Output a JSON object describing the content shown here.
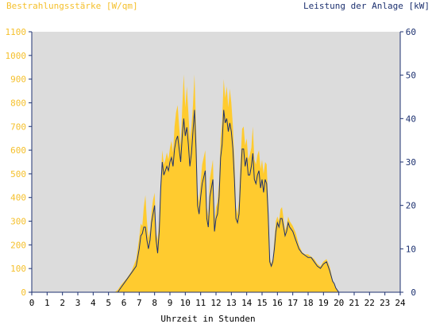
{
  "chart_data": {
    "type": "area",
    "title_left": "Bestrahlungsstärke [W/qm]",
    "title_right": "Leistung der Anlage [kW]",
    "xlabel": "Uhrzeit in Stunden",
    "x_ticks": [
      "0",
      "1",
      "2",
      "3",
      "4",
      "5",
      "6",
      "7",
      "8",
      "9",
      "10",
      "11",
      "12",
      "13",
      "14",
      "15",
      "16",
      "17",
      "18",
      "19",
      "20",
      "21",
      "22",
      "23",
      "24"
    ],
    "y_left_ticks": [
      "0",
      "100",
      "200",
      "300",
      "400",
      "500",
      "600",
      "700",
      "800",
      "900",
      "1000",
      "1100"
    ],
    "y_right_ticks": [
      "0",
      "10",
      "20",
      "30",
      "40",
      "50",
      "60"
    ],
    "xlim": [
      0,
      24
    ],
    "ylim_left": [
      0,
      1100
    ],
    "ylim_right": [
      0,
      60
    ],
    "grid": false,
    "colors": {
      "plot_bg": "#dcdcdc",
      "irradiance_fill": "#ffcb2f",
      "power_line": "#1d3170",
      "left_axis_text": "#f5c02c",
      "right_axis_text": "#1d3170"
    },
    "series": [
      {
        "axis": "left",
        "style": "filled-area",
        "points": [
          [
            0,
            0
          ],
          [
            5.4,
            0
          ],
          [
            5.6,
            10
          ],
          [
            5.8,
            30
          ],
          [
            6.0,
            45
          ],
          [
            6.2,
            60
          ],
          [
            6.5,
            90
          ],
          [
            6.8,
            140
          ],
          [
            7.0,
            230
          ],
          [
            7.1,
            290
          ],
          [
            7.2,
            280
          ],
          [
            7.3,
            360
          ],
          [
            7.4,
            410
          ],
          [
            7.5,
            300
          ],
          [
            7.6,
            230
          ],
          [
            7.7,
            260
          ],
          [
            7.8,
            340
          ],
          [
            7.9,
            390
          ],
          [
            8.0,
            420
          ],
          [
            8.1,
            250
          ],
          [
            8.2,
            220
          ],
          [
            8.3,
            300
          ],
          [
            8.4,
            470
          ],
          [
            8.5,
            600
          ],
          [
            8.6,
            540
          ],
          [
            8.7,
            560
          ],
          [
            8.8,
            590
          ],
          [
            8.9,
            560
          ],
          [
            9.0,
            610
          ],
          [
            9.1,
            640
          ],
          [
            9.2,
            590
          ],
          [
            9.3,
            700
          ],
          [
            9.4,
            760
          ],
          [
            9.5,
            790
          ],
          [
            9.6,
            700
          ],
          [
            9.7,
            620
          ],
          [
            9.8,
            780
          ],
          [
            9.9,
            920
          ],
          [
            10.0,
            780
          ],
          [
            10.1,
            870
          ],
          [
            10.2,
            760
          ],
          [
            10.3,
            640
          ],
          [
            10.4,
            700
          ],
          [
            10.5,
            790
          ],
          [
            10.6,
            920
          ],
          [
            10.7,
            700
          ],
          [
            10.8,
            420
          ],
          [
            10.9,
            380
          ],
          [
            11.0,
            470
          ],
          [
            11.1,
            540
          ],
          [
            11.3,
            600
          ],
          [
            11.4,
            360
          ],
          [
            11.5,
            320
          ],
          [
            11.6,
            480
          ],
          [
            11.8,
            560
          ],
          [
            11.9,
            300
          ],
          [
            12.0,
            360
          ],
          [
            12.1,
            380
          ],
          [
            12.2,
            470
          ],
          [
            12.3,
            650
          ],
          [
            12.4,
            720
          ],
          [
            12.5,
            900
          ],
          [
            12.6,
            820
          ],
          [
            12.7,
            870
          ],
          [
            12.8,
            780
          ],
          [
            12.9,
            860
          ],
          [
            13.0,
            800
          ],
          [
            13.1,
            700
          ],
          [
            13.2,
            560
          ],
          [
            13.3,
            360
          ],
          [
            13.4,
            330
          ],
          [
            13.5,
            390
          ],
          [
            13.6,
            560
          ],
          [
            13.7,
            690
          ],
          [
            13.8,
            700
          ],
          [
            13.9,
            620
          ],
          [
            14.0,
            650
          ],
          [
            14.1,
            560
          ],
          [
            14.2,
            580
          ],
          [
            14.3,
            610
          ],
          [
            14.4,
            700
          ],
          [
            14.5,
            560
          ],
          [
            14.6,
            540
          ],
          [
            14.7,
            580
          ],
          [
            14.8,
            600
          ],
          [
            14.9,
            520
          ],
          [
            15.0,
            560
          ],
          [
            15.1,
            500
          ],
          [
            15.2,
            550
          ],
          [
            15.3,
            540
          ],
          [
            15.4,
            380
          ],
          [
            15.5,
            150
          ],
          [
            15.6,
            120
          ],
          [
            15.7,
            140
          ],
          [
            15.8,
            220
          ],
          [
            15.9,
            300
          ],
          [
            16.0,
            320
          ],
          [
            16.1,
            300
          ],
          [
            16.2,
            350
          ],
          [
            16.3,
            360
          ],
          [
            16.4,
            310
          ],
          [
            16.5,
            260
          ],
          [
            16.6,
            280
          ],
          [
            16.7,
            320
          ],
          [
            16.8,
            300
          ],
          [
            17.0,
            280
          ],
          [
            17.2,
            250
          ],
          [
            17.4,
            200
          ],
          [
            17.6,
            170
          ],
          [
            17.8,
            160
          ],
          [
            18.0,
            160
          ],
          [
            18.2,
            150
          ],
          [
            18.4,
            140
          ],
          [
            18.6,
            120
          ],
          [
            18.8,
            110
          ],
          [
            19.0,
            130
          ],
          [
            19.2,
            140
          ],
          [
            19.4,
            110
          ],
          [
            19.6,
            50
          ],
          [
            19.7,
            40
          ],
          [
            19.8,
            20
          ],
          [
            19.9,
            10
          ],
          [
            20.0,
            0
          ],
          [
            24,
            0
          ]
        ]
      },
      {
        "axis": "right",
        "style": "line",
        "points": [
          [
            0,
            0
          ],
          [
            5.6,
            0
          ],
          [
            5.8,
            1
          ],
          [
            6.0,
            2
          ],
          [
            6.2,
            3
          ],
          [
            6.5,
            4.5
          ],
          [
            6.8,
            6
          ],
          [
            7.0,
            10
          ],
          [
            7.1,
            13
          ],
          [
            7.2,
            13.5
          ],
          [
            7.3,
            15
          ],
          [
            7.4,
            15
          ],
          [
            7.5,
            12
          ],
          [
            7.6,
            10
          ],
          [
            7.7,
            12
          ],
          [
            7.8,
            16
          ],
          [
            7.9,
            18
          ],
          [
            8.0,
            20
          ],
          [
            8.1,
            12
          ],
          [
            8.2,
            9
          ],
          [
            8.3,
            14
          ],
          [
            8.4,
            24
          ],
          [
            8.5,
            30
          ],
          [
            8.6,
            27
          ],
          [
            8.7,
            28
          ],
          [
            8.8,
            29
          ],
          [
            8.9,
            28
          ],
          [
            9.0,
            30
          ],
          [
            9.1,
            31
          ],
          [
            9.2,
            29
          ],
          [
            9.3,
            33
          ],
          [
            9.4,
            35
          ],
          [
            9.5,
            36
          ],
          [
            9.6,
            33
          ],
          [
            9.7,
            30
          ],
          [
            9.8,
            36
          ],
          [
            9.9,
            40
          ],
          [
            10.0,
            36
          ],
          [
            10.1,
            38
          ],
          [
            10.2,
            34
          ],
          [
            10.3,
            29
          ],
          [
            10.4,
            32
          ],
          [
            10.5,
            37
          ],
          [
            10.6,
            42
          ],
          [
            10.7,
            33
          ],
          [
            10.8,
            20
          ],
          [
            10.9,
            18
          ],
          [
            11.0,
            22
          ],
          [
            11.1,
            25
          ],
          [
            11.3,
            28
          ],
          [
            11.4,
            17
          ],
          [
            11.5,
            15
          ],
          [
            11.6,
            22
          ],
          [
            11.8,
            26
          ],
          [
            11.9,
            14
          ],
          [
            12.0,
            17
          ],
          [
            12.1,
            18
          ],
          [
            12.2,
            22
          ],
          [
            12.3,
            31
          ],
          [
            12.4,
            34
          ],
          [
            12.5,
            42
          ],
          [
            12.6,
            39
          ],
          [
            12.7,
            40
          ],
          [
            12.8,
            37
          ],
          [
            12.9,
            39
          ],
          [
            13.0,
            37
          ],
          [
            13.1,
            33
          ],
          [
            13.2,
            26
          ],
          [
            13.3,
            17
          ],
          [
            13.4,
            16
          ],
          [
            13.5,
            18
          ],
          [
            13.6,
            26
          ],
          [
            13.7,
            33
          ],
          [
            13.8,
            33
          ],
          [
            13.9,
            29
          ],
          [
            14.0,
            31
          ],
          [
            14.1,
            27
          ],
          [
            14.2,
            27
          ],
          [
            14.3,
            29
          ],
          [
            14.4,
            32
          ],
          [
            14.5,
            26
          ],
          [
            14.6,
            25
          ],
          [
            14.7,
            27
          ],
          [
            14.8,
            28
          ],
          [
            14.9,
            24
          ],
          [
            15.0,
            26
          ],
          [
            15.1,
            23
          ],
          [
            15.2,
            26
          ],
          [
            15.3,
            25
          ],
          [
            15.4,
            18
          ],
          [
            15.5,
            7
          ],
          [
            15.6,
            6
          ],
          [
            15.7,
            7
          ],
          [
            15.8,
            10
          ],
          [
            15.9,
            14
          ],
          [
            16.0,
            16
          ],
          [
            16.1,
            15
          ],
          [
            16.2,
            17
          ],
          [
            16.3,
            17
          ],
          [
            16.4,
            15
          ],
          [
            16.5,
            13
          ],
          [
            16.6,
            14
          ],
          [
            16.7,
            16
          ],
          [
            16.8,
            15
          ],
          [
            17.0,
            14
          ],
          [
            17.2,
            12
          ],
          [
            17.4,
            10
          ],
          [
            17.6,
            9
          ],
          [
            17.8,
            8.5
          ],
          [
            18.0,
            8
          ],
          [
            18.2,
            8
          ],
          [
            18.4,
            7
          ],
          [
            18.6,
            6
          ],
          [
            18.8,
            5.5
          ],
          [
            19.0,
            6.5
          ],
          [
            19.2,
            7
          ],
          [
            19.4,
            5
          ],
          [
            19.6,
            2.5
          ],
          [
            19.7,
            2
          ],
          [
            19.8,
            1
          ],
          [
            19.9,
            0.5
          ],
          [
            20.0,
            0
          ],
          [
            24,
            0
          ]
        ]
      }
    ]
  }
}
